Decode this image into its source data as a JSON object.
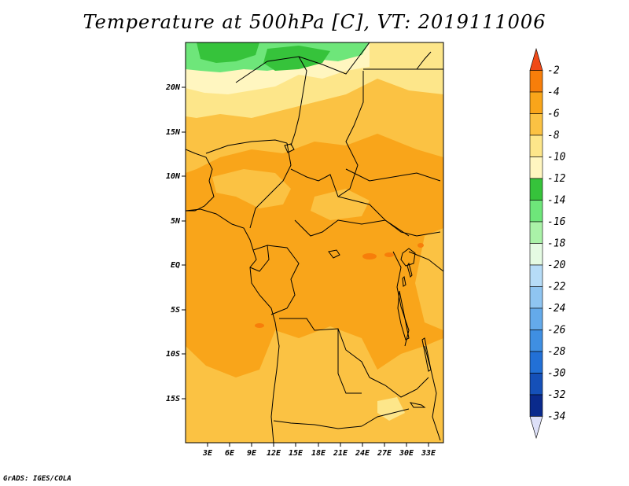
{
  "title": "Temperature at 500hPa [C], VT: 2019111006",
  "credit": "GrADS: IGES/COLA",
  "lat_labels": [
    "20N",
    "15N",
    "10N",
    "5N",
    "EQ",
    "5S",
    "10S",
    "15S"
  ],
  "lon_labels": [
    "3E",
    "6E",
    "9E",
    "12E",
    "15E",
    "18E",
    "21E",
    "24E",
    "27E",
    "30E",
    "33E"
  ],
  "colorbar": {
    "labels": [
      "-2",
      "-4",
      "-6",
      "-8",
      "-10",
      "-12",
      "-14",
      "-16",
      "-18",
      "-20",
      "-22",
      "-24",
      "-26",
      "-28",
      "-30",
      "-32",
      "-34"
    ],
    "colors": [
      "#f04a18",
      "#f77e0a",
      "#f9a51a",
      "#fbc243",
      "#fde68a",
      "#fff6c0",
      "#36c33b",
      "#6ee67a",
      "#aaf2a8",
      "#e5fbe3",
      "#b6dcf7",
      "#8fc5f1",
      "#64aaea",
      "#3f8fe2",
      "#2270d6",
      "#1550b8",
      "#0a2a8c",
      "#dde0f8"
    ]
  },
  "colors": {
    "warm_orange": "#f9a51a",
    "light_orange": "#fbc243",
    "pale_yellow": "#fde68a",
    "cream": "#fff6c0",
    "green": "#36c33b",
    "light_green": "#6ee67a",
    "hot_spot": "#f77e0a"
  }
}
